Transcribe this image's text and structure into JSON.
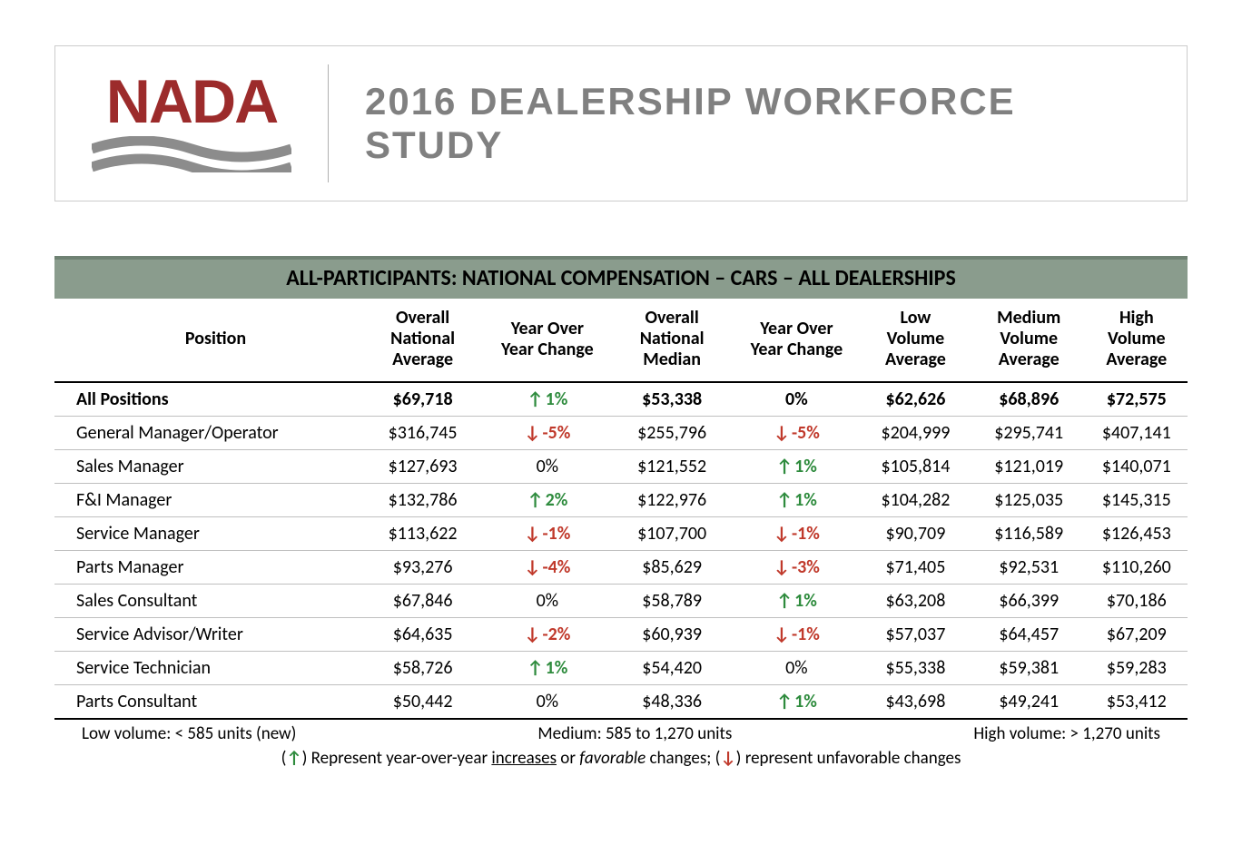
{
  "header": {
    "logo_text": "NADA",
    "title": "2016 DEALERSHIP WORKFORCE STUDY",
    "logo_color": "#9c2b2b",
    "wave_color": "#8c8c8c",
    "title_color": "#808080"
  },
  "table": {
    "title": "ALL-PARTICIPANTS: NATIONAL COMPENSATION – CARS – ALL DEALERSHIPS",
    "title_bg": "#8a9c8d",
    "title_border_top": "#6f8273",
    "columns": [
      "Position",
      "Overall National Average",
      "Year Over Year Change",
      "Overall National Median",
      "Year Over Year Change",
      "Low Volume Average",
      "Medium Volume Average",
      "High Volume Average"
    ],
    "col_widths_pct": [
      27,
      11,
      11,
      11,
      11,
      10,
      10,
      9
    ],
    "up_color": "#2e8b3d",
    "down_color": "#c0392b",
    "rows": [
      {
        "bold": true,
        "position": "All Positions",
        "overall_avg": "$69,718",
        "yoy_avg": {
          "dir": "up",
          "text": "1%"
        },
        "overall_median": "$53,338",
        "yoy_median": {
          "dir": "none",
          "text": "0%"
        },
        "low": "$62,626",
        "med": "$68,896",
        "high": "$72,575"
      },
      {
        "bold": false,
        "position": "General Manager/Operator",
        "overall_avg": "$316,745",
        "yoy_avg": {
          "dir": "down",
          "text": "-5%"
        },
        "overall_median": "$255,796",
        "yoy_median": {
          "dir": "down",
          "text": "-5%"
        },
        "low": "$204,999",
        "med": "$295,741",
        "high": "$407,141"
      },
      {
        "bold": false,
        "position": "Sales Manager",
        "overall_avg": "$127,693",
        "yoy_avg": {
          "dir": "none",
          "text": "0%"
        },
        "overall_median": "$121,552",
        "yoy_median": {
          "dir": "up",
          "text": "1%"
        },
        "low": "$105,814",
        "med": "$121,019",
        "high": "$140,071"
      },
      {
        "bold": false,
        "position": "F&I Manager",
        "overall_avg": "$132,786",
        "yoy_avg": {
          "dir": "up",
          "text": "2%"
        },
        "overall_median": "$122,976",
        "yoy_median": {
          "dir": "up",
          "text": "1%"
        },
        "low": "$104,282",
        "med": "$125,035",
        "high": "$145,315"
      },
      {
        "bold": false,
        "position": "Service Manager",
        "overall_avg": "$113,622",
        "yoy_avg": {
          "dir": "down",
          "text": "-1%"
        },
        "overall_median": "$107,700",
        "yoy_median": {
          "dir": "down",
          "text": "-1%"
        },
        "low": "$90,709",
        "med": "$116,589",
        "high": "$126,453"
      },
      {
        "bold": false,
        "position": "Parts Manager",
        "overall_avg": "$93,276",
        "yoy_avg": {
          "dir": "down",
          "text": "-4%"
        },
        "overall_median": "$85,629",
        "yoy_median": {
          "dir": "down",
          "text": "-3%"
        },
        "low": "$71,405",
        "med": "$92,531",
        "high": "$110,260"
      },
      {
        "bold": false,
        "position": "Sales Consultant",
        "overall_avg": "$67,846",
        "yoy_avg": {
          "dir": "none",
          "text": "0%"
        },
        "overall_median": "$58,789",
        "yoy_median": {
          "dir": "up",
          "text": "1%"
        },
        "low": "$63,208",
        "med": "$66,399",
        "high": "$70,186"
      },
      {
        "bold": false,
        "position": "Service Advisor/Writer",
        "overall_avg": "$64,635",
        "yoy_avg": {
          "dir": "down",
          "text": "-2%"
        },
        "overall_median": "$60,939",
        "yoy_median": {
          "dir": "down",
          "text": "-1%"
        },
        "low": "$57,037",
        "med": "$64,457",
        "high": "$67,209"
      },
      {
        "bold": false,
        "position": "Service Technician",
        "overall_avg": "$58,726",
        "yoy_avg": {
          "dir": "up",
          "text": "1%"
        },
        "overall_median": "$54,420",
        "yoy_median": {
          "dir": "none",
          "text": "0%"
        },
        "low": "$55,338",
        "med": "$59,381",
        "high": "$59,283"
      },
      {
        "bold": false,
        "position": "Parts Consultant",
        "overall_avg": "$50,442",
        "yoy_avg": {
          "dir": "none",
          "text": "0%"
        },
        "overall_median": "$48,336",
        "yoy_median": {
          "dir": "up",
          "text": "1%"
        },
        "low": "$43,698",
        "med": "$49,241",
        "high": "$53,412"
      }
    ]
  },
  "footer": {
    "low": "Low volume: < 585 units (new)",
    "medium": "Medium: 585 to 1,270 units",
    "high": "High volume: > 1,270 units",
    "legend_prefix": "(",
    "legend_up": "↑",
    "legend_mid1": ") Represent year-over-year ",
    "legend_increases": "increases",
    "legend_mid2": " or ",
    "legend_favorable": "favorable",
    "legend_mid3": " changes; (",
    "legend_down": "↓",
    "legend_suffix": ") represent unfavorable changes"
  }
}
